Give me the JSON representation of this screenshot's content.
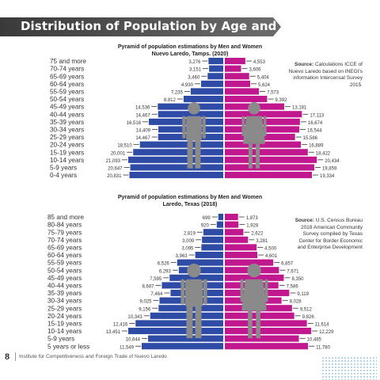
{
  "page": {
    "title": "Distribution of Population by Age and Gender",
    "page_number": "8",
    "footer": "Institute for Competitiveness and Foreign Trade of Nuevo Laredo"
  },
  "colors": {
    "men": "#2e4ba6",
    "women": "#c2188f",
    "icon": "#8a8a8a",
    "banner": "#4a4a4a"
  },
  "chart_data": [
    {
      "type": "bar",
      "title_line1": "Pyramid of population estimations by Men and Women",
      "title_line2": "Nuevo Laredo, Tamps. (2020)",
      "source_label": "Source:",
      "source_lines": [
        "Calculations ICCE of",
        "Nuevo Laredo based on INEGI's",
        "information Intercensal Survey",
        "2015."
      ],
      "categories": [
        "75 and more",
        "70-74 years",
        "65-69 years",
        "60-64 years",
        "55-59 years",
        "50-54 years",
        "45-49 years",
        "40-44 years",
        "35-39 years",
        "30-34 years",
        "25-29 years",
        "20-24 years",
        "15-19 years",
        "10-14 years",
        "5-9 years",
        "0-4 years"
      ],
      "series": [
        {
          "values": [
            3276,
            3151,
            3460,
            4930,
            7235,
            8812,
            14536,
            14467,
            16518,
            14409,
            14467,
            18510,
            20001,
            21093,
            20647,
            20831
          ]
        },
        {
          "values": [
            4553,
            3606,
            5404,
            5624,
            7573,
            9392,
            13181,
            17113,
            16674,
            16544,
            15586,
            16889,
            18422,
            20434,
            19859,
            19334
          ]
        }
      ],
      "value_labels_men": [
        "3,276",
        "3,151",
        "3,460",
        "4,930",
        "7,235",
        "8,812",
        "14,536",
        "14,467",
        "16,518",
        "14,409",
        "14,467",
        "18,510",
        "20,001",
        "21,093",
        "20,647",
        "20,831"
      ],
      "value_labels_women": [
        "4,553",
        "3,606",
        "5,404",
        "5,624",
        "7,573",
        "9,392",
        "13,181",
        "17,113",
        "16,674",
        "16,544",
        "15,586",
        "16,889",
        "18,422",
        "20,434",
        "19,859",
        "19,334"
      ]
    },
    {
      "type": "bar",
      "title_line1": "Pyramid of population estimations by Men and Women",
      "title_line2": "Laredo, Texas (2018)",
      "source_label": "Source:",
      "source_lines": [
        "U.S. Census Bureau",
        "2018 American Community",
        "Survey compiled by Texas",
        "Center for Border Economic",
        "and Enterprise Development"
      ],
      "categories": [
        "85 and more",
        "80-84 years",
        "75-79 years",
        "70-74 years",
        "65-69 years",
        "60-64 years",
        "55-59 years",
        "50-54 years",
        "45-49 years",
        "40-44 years",
        "35-39 years",
        "30-34 years",
        "25-29 years",
        "20-24 years",
        "15-19 years",
        "10-14 years",
        "5-9 years",
        "5 years or less"
      ],
      "series": [
        {
          "values": [
            699,
            920,
            2819,
            3009,
            3095,
            3963,
            6526,
            6293,
            7595,
            8687,
            7464,
            9025,
            9156,
            10343,
            12416,
            13451,
            10644,
            11549
          ]
        },
        {
          "values": [
            1873,
            1928,
            2622,
            3281,
            4500,
            4601,
            6857,
            7671,
            8350,
            7586,
            9119,
            8028,
            9512,
            9826,
            11614,
            12229,
            10485,
            11780
          ]
        }
      ],
      "value_labels_men": [
        "699",
        "920",
        "2,819",
        "3,009",
        "3,095",
        "3,963",
        "6,526",
        "6,293",
        "7,595",
        "8,687",
        "7,464",
        "9,025",
        "9,156",
        "10,343",
        "12,416",
        "13,451",
        "10,644",
        "11,549"
      ],
      "value_labels_women": [
        "1,873",
        "1,928",
        "2,622",
        "3,281",
        "4,500",
        "4,601",
        "6,857",
        "7,671",
        "8,350",
        "7,586",
        "9,119",
        "8,028",
        "9,512",
        "9,826",
        "11,614",
        "12,229",
        "10,485",
        "11,780"
      ]
    }
  ]
}
